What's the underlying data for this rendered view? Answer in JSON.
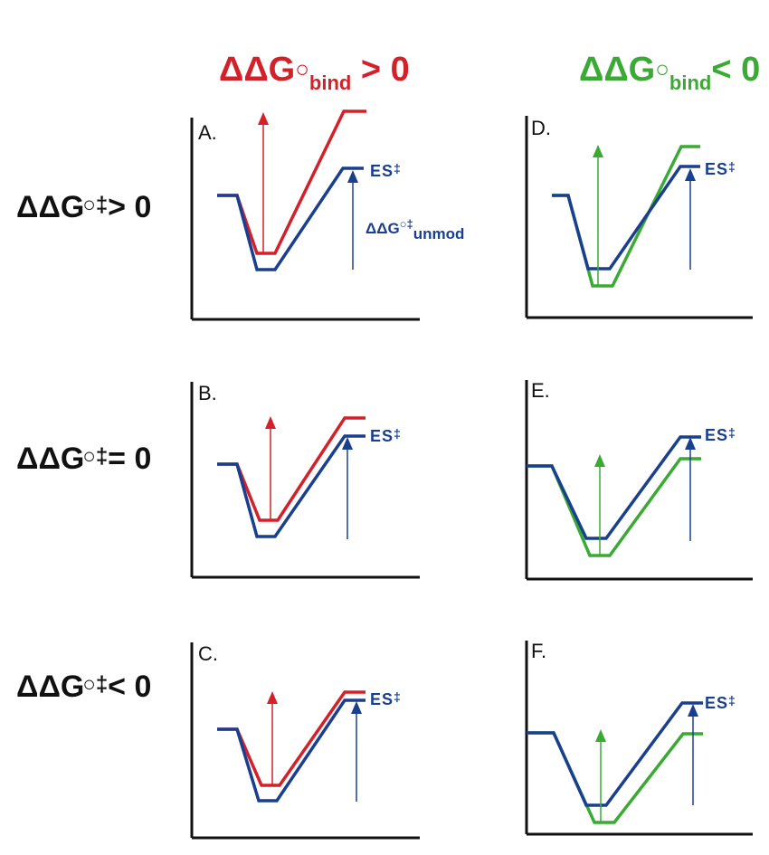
{
  "column_headers": {
    "left": {
      "main": "ΔΔG",
      "sup": "○",
      "sub": "bind",
      "tail": " > 0",
      "color": "#d42028"
    },
    "right": {
      "main": "ΔΔG",
      "sup": "○",
      "sub": "bind",
      "tail": "< 0",
      "color": "#3aaa35"
    }
  },
  "row_headers": [
    {
      "main": "ΔΔG",
      "sup": "○‡",
      "tail": "> 0"
    },
    {
      "main": "ΔΔG",
      "sup": "○‡",
      "tail": "= 0"
    },
    {
      "main": "ΔΔG",
      "sup": "○‡",
      "tail": "< 0"
    }
  ],
  "panels": [
    {
      "letter": "A.",
      "modified_color": "red"
    },
    {
      "letter": "B.",
      "modified_color": "red"
    },
    {
      "letter": "C.",
      "modified_color": "red"
    },
    {
      "letter": "D.",
      "modified_color": "green"
    },
    {
      "letter": "E.",
      "modified_color": "green"
    },
    {
      "letter": "F.",
      "modified_color": "green"
    }
  ],
  "labels": {
    "es": "ES",
    "es_sup": "‡",
    "unmod_main": "ΔΔG",
    "unmod_sup": "○‡",
    "unmod_sub": "unmod"
  },
  "colors": {
    "unmodified": "#1a3f8f",
    "bind_positive": "#d42028",
    "bind_negative": "#3aaa35",
    "axis": "#111111"
  }
}
